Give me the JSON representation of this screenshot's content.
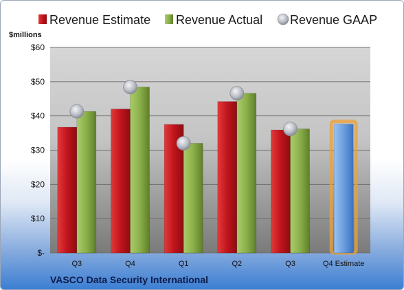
{
  "company": "VASCO Data Security International",
  "chart_data": {
    "type": "bar",
    "unit_label": "$millions",
    "categories": [
      "Q3",
      "Q4",
      "Q1",
      "Q2",
      "Q3",
      "Q4 Estimate"
    ],
    "ylim": [
      0,
      60
    ],
    "y_ticks": [
      0,
      10,
      20,
      30,
      40,
      50,
      60
    ],
    "y_tick_labels": [
      "$-",
      "$10",
      "$20",
      "$30",
      "$40",
      "$50",
      "$60"
    ],
    "grid": true,
    "legend_position": "top",
    "series": [
      {
        "name": "Revenue Estimate",
        "kind": "bar",
        "color": "#c0141c",
        "values": [
          36.7,
          42.0,
          37.5,
          44.2,
          35.9,
          null
        ]
      },
      {
        "name": "Revenue Actual",
        "kind": "bar",
        "color": "#8bb04a",
        "values": [
          41.3,
          48.4,
          32.0,
          46.6,
          36.2,
          null
        ]
      },
      {
        "name": "Revenue GAAP",
        "kind": "marker",
        "color": "#b8bcc4",
        "values": [
          41.3,
          48.4,
          32.0,
          46.6,
          36.2,
          null
        ]
      },
      {
        "name": "Q4 Estimate",
        "kind": "highlight-bar",
        "color": "#6a9ee0",
        "values": [
          null,
          null,
          null,
          null,
          null,
          37.6
        ]
      }
    ]
  }
}
